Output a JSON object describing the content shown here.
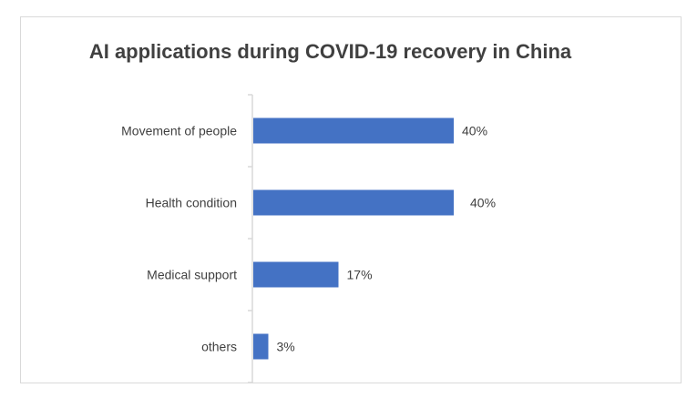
{
  "chart_data": {
    "type": "bar",
    "orientation": "horizontal",
    "title": "AI applications during COVID-19 recovery in China",
    "categories": [
      "Movement of people",
      "Health condition",
      "Medical support",
      "others"
    ],
    "values": [
      40,
      40,
      17,
      3
    ],
    "data_labels": [
      "40%",
      "40%",
      "17%",
      "3%"
    ],
    "xlabel": "",
    "ylabel": "",
    "xlim": [
      0,
      45
    ],
    "grid": false,
    "bar_color": "#4472C4"
  }
}
